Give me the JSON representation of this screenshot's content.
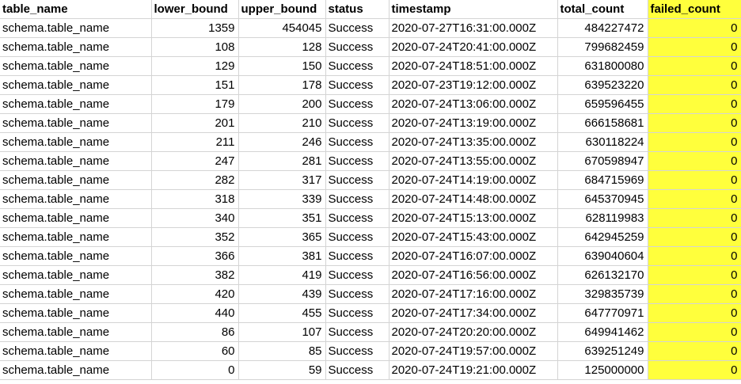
{
  "columns": [
    "table_name",
    "lower_bound",
    "upper_bound",
    "status",
    "timestamp",
    "total_count",
    "failed_count"
  ],
  "highlight_color": "#ffff3c",
  "rows": [
    [
      "schema.table_name",
      "1359",
      "454045",
      "Success",
      "2020-07-27T16:31:00.000Z",
      "484227472",
      "0"
    ],
    [
      "schema.table_name",
      "108",
      "128",
      "Success",
      "2020-07-24T20:41:00.000Z",
      "799682459",
      "0"
    ],
    [
      "schema.table_name",
      "129",
      "150",
      "Success",
      "2020-07-24T18:51:00.000Z",
      "631800080",
      "0"
    ],
    [
      "schema.table_name",
      "151",
      "178",
      "Success",
      "2020-07-23T19:12:00.000Z",
      "639523220",
      "0"
    ],
    [
      "schema.table_name",
      "179",
      "200",
      "Success",
      "2020-07-24T13:06:00.000Z",
      "659596455",
      "0"
    ],
    [
      "schema.table_name",
      "201",
      "210",
      "Success",
      "2020-07-24T13:19:00.000Z",
      "666158681",
      "0"
    ],
    [
      "schema.table_name",
      "211",
      "246",
      "Success",
      "2020-07-24T13:35:00.000Z",
      "630118224",
      "0"
    ],
    [
      "schema.table_name",
      "247",
      "281",
      "Success",
      "2020-07-24T13:55:00.000Z",
      "670598947",
      "0"
    ],
    [
      "schema.table_name",
      "282",
      "317",
      "Success",
      "2020-07-24T14:19:00.000Z",
      "684715969",
      "0"
    ],
    [
      "schema.table_name",
      "318",
      "339",
      "Success",
      "2020-07-24T14:48:00.000Z",
      "645370945",
      "0"
    ],
    [
      "schema.table_name",
      "340",
      "351",
      "Success",
      "2020-07-24T15:13:00.000Z",
      "628119983",
      "0"
    ],
    [
      "schema.table_name",
      "352",
      "365",
      "Success",
      "2020-07-24T15:43:00.000Z",
      "642945259",
      "0"
    ],
    [
      "schema.table_name",
      "366",
      "381",
      "Success",
      "2020-07-24T16:07:00.000Z",
      "639040604",
      "0"
    ],
    [
      "schema.table_name",
      "382",
      "419",
      "Success",
      "2020-07-24T16:56:00.000Z",
      "626132170",
      "0"
    ],
    [
      "schema.table_name",
      "420",
      "439",
      "Success",
      "2020-07-24T17:16:00.000Z",
      "329835739",
      "0"
    ],
    [
      "schema.table_name",
      "440",
      "455",
      "Success",
      "2020-07-24T17:34:00.000Z",
      "647770971",
      "0"
    ],
    [
      "schema.table_name",
      "86",
      "107",
      "Success",
      "2020-07-24T20:20:00.000Z",
      "649941462",
      "0"
    ],
    [
      "schema.table_name",
      "60",
      "85",
      "Success",
      "2020-07-24T19:57:00.000Z",
      "639251249",
      "0"
    ],
    [
      "schema.table_name",
      "0",
      "59",
      "Success",
      "2020-07-24T19:21:00.000Z",
      "125000000",
      "0"
    ]
  ]
}
